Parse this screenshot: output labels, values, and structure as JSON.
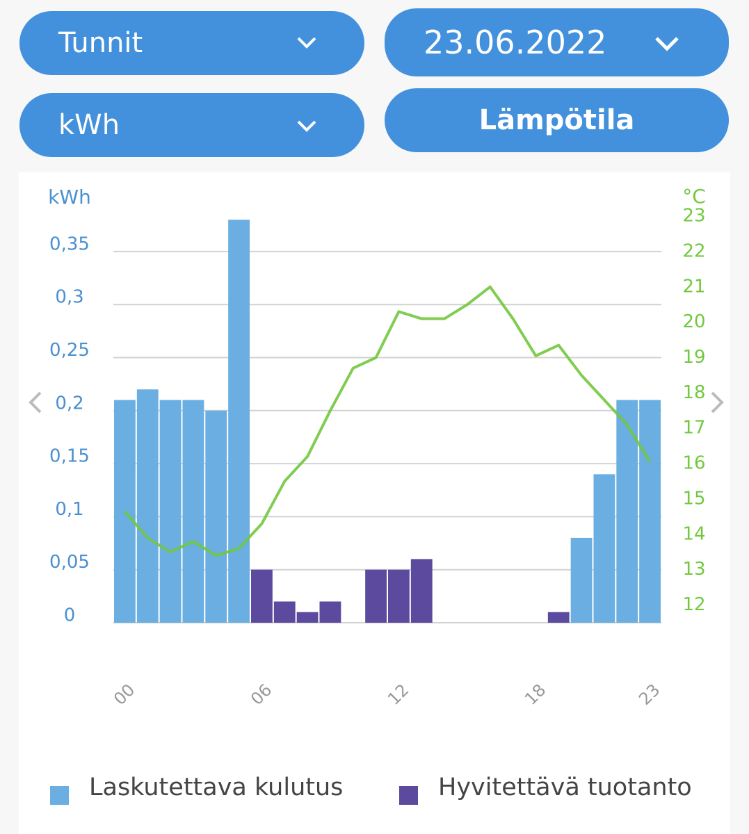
{
  "controls": {
    "period": "Tunnit",
    "date": "23.06.2022",
    "unit": "kWh",
    "temperature": "Lämpötila"
  },
  "chart_data": {
    "type": "bar",
    "y_label": "kWh",
    "y2_label": "°C",
    "categories": [
      "00",
      null,
      null,
      null,
      null,
      null,
      "06",
      null,
      null,
      null,
      null,
      null,
      "12",
      null,
      null,
      null,
      null,
      null,
      "18",
      null,
      null,
      null,
      null,
      "23"
    ],
    "series": [
      {
        "name": "Laskutettava kulutus",
        "color": "#6aaee2",
        "values": [
          0.21,
          0.22,
          0.21,
          0.21,
          0.2,
          0.38,
          null,
          null,
          null,
          null,
          null,
          null,
          null,
          null,
          null,
          null,
          null,
          null,
          null,
          null,
          0.08,
          0.14,
          0.21,
          0.21
        ]
      },
      {
        "name": "Hyvitettävä tuotanto",
        "color": "#5b4a9e",
        "values": [
          null,
          null,
          null,
          null,
          null,
          null,
          0.05,
          0.02,
          0.01,
          0.02,
          null,
          0.05,
          0.05,
          0.06,
          null,
          null,
          null,
          null,
          null,
          0.01,
          null,
          null,
          null,
          null
        ]
      },
      {
        "type": "line",
        "axis": "y2",
        "color": "#72c83e",
        "values": [
          14.65,
          13.9,
          13.5,
          13.8,
          13.4,
          13.6,
          14.3,
          15.5,
          16.2,
          17.5,
          18.7,
          19.0,
          20.3,
          20.1,
          20.1,
          20.5,
          21.0,
          20.1,
          19.05,
          19.35,
          18.5,
          17.8,
          17.1,
          16.05
        ]
      }
    ],
    "ylim": [
      0,
      0.4
    ],
    "yticks": [
      0,
      {
        "value": 0.05,
        "label": "0,05"
      },
      {
        "value": 0.1,
        "label": "0,1"
      },
      {
        "value": 0.15,
        "label": "0,15"
      },
      {
        "value": 0.2,
        "label": "0,2"
      },
      {
        "value": 0.25,
        "label": "0,25"
      },
      {
        "value": 0.3,
        "label": "0,3"
      },
      {
        "value": 0.35,
        "label": "0,35"
      }
    ],
    "y2lim": [
      11.5,
      23.5
    ],
    "y2ticks": [
      12,
      13,
      14,
      15,
      16,
      17,
      18,
      19,
      20,
      21,
      22,
      23
    ],
    "grid": true
  }
}
